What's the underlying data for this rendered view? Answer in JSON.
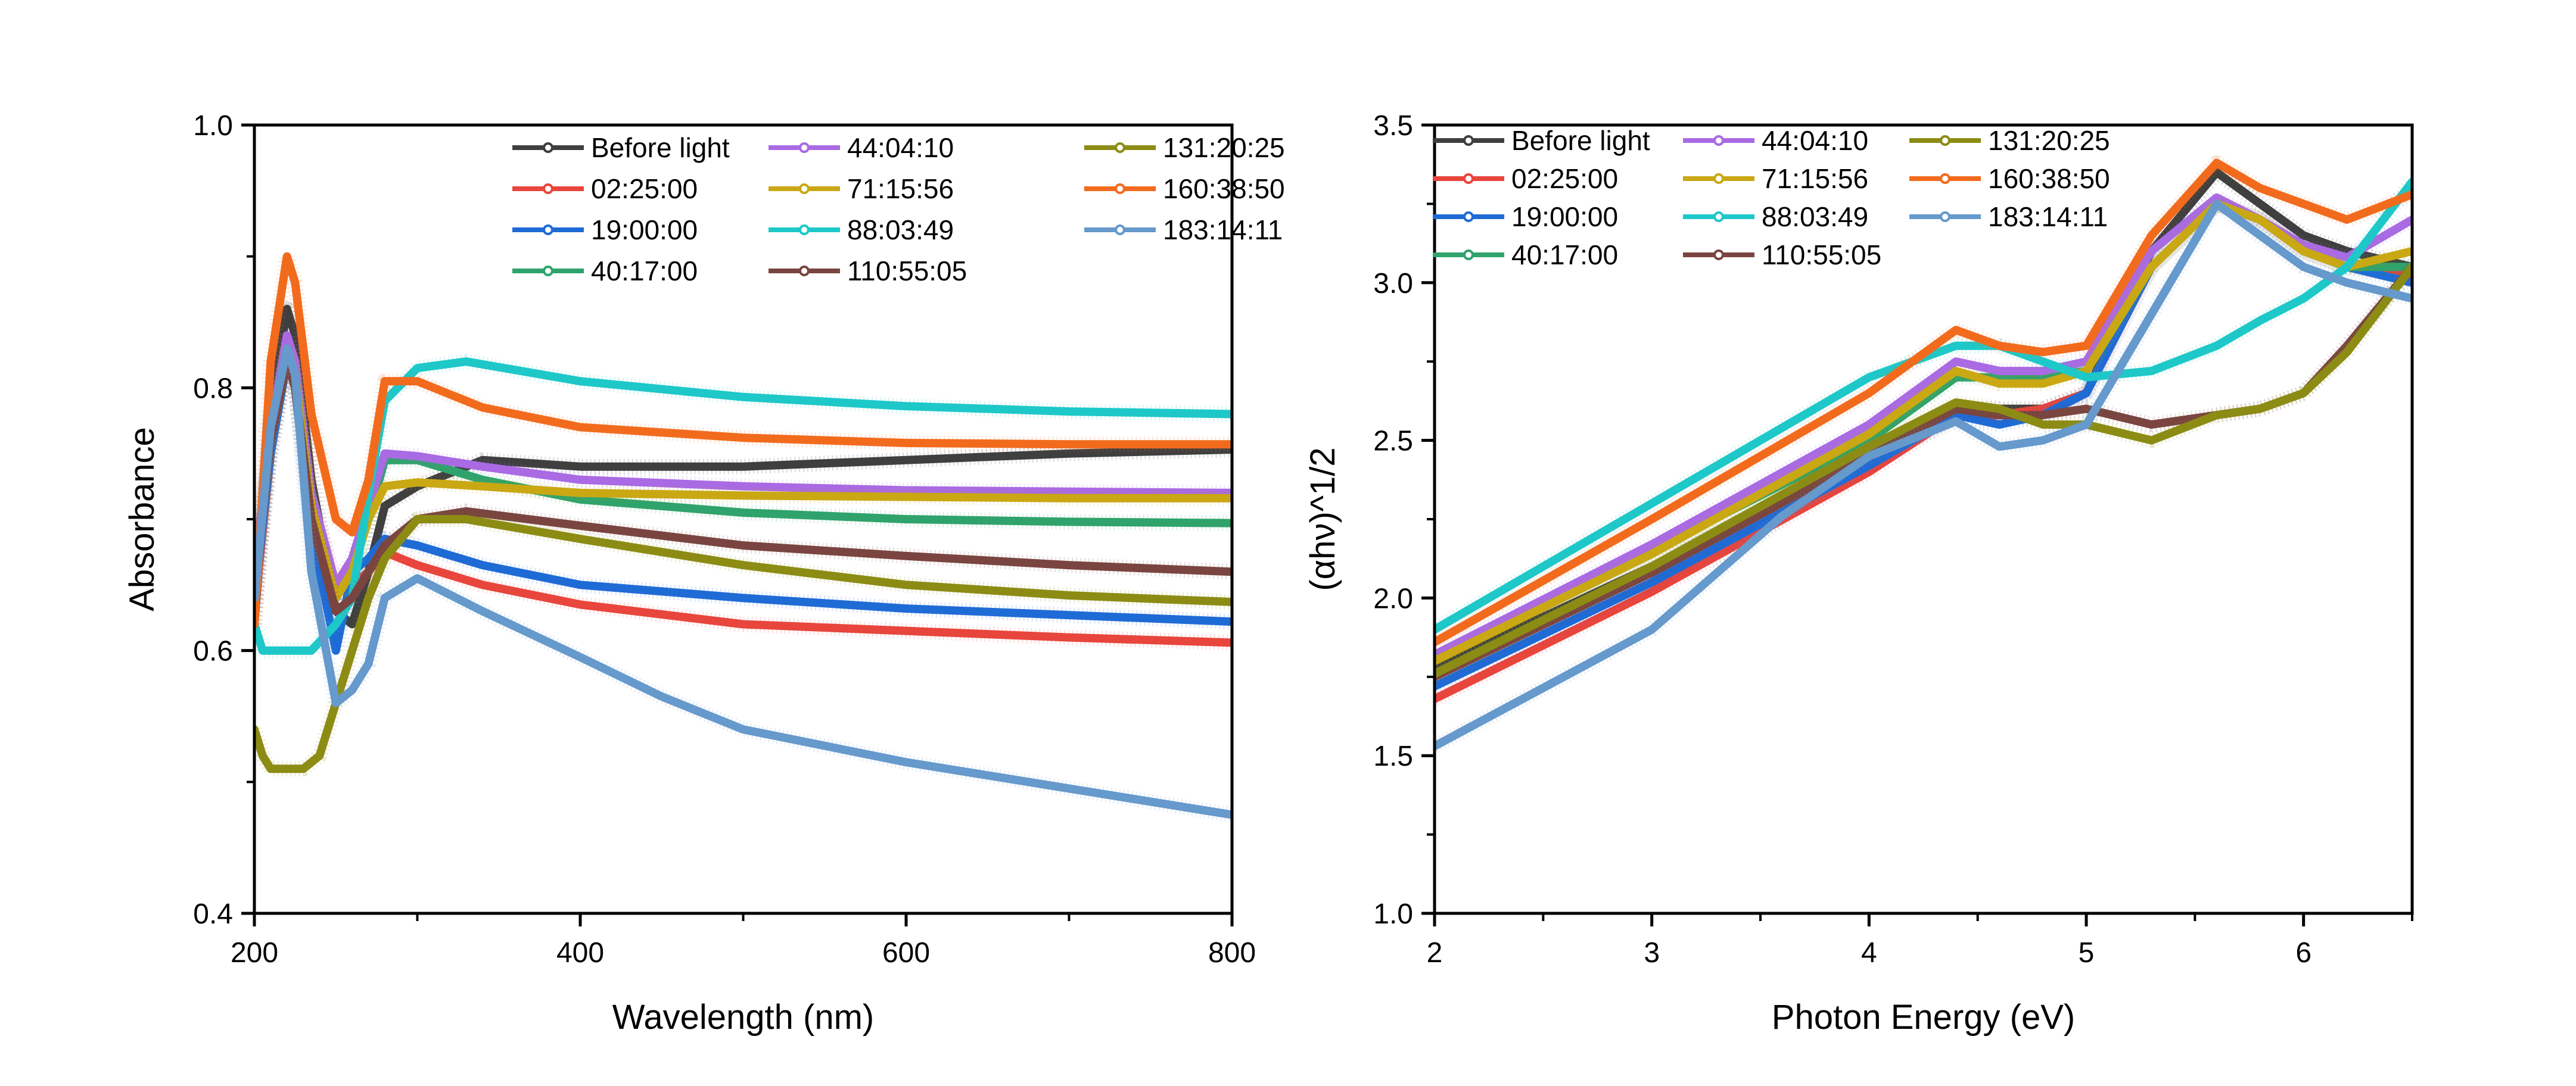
{
  "chart_data": [
    {
      "type": "line",
      "xlabel": "Wavelength (nm)",
      "ylabel": "Absorbance",
      "xlim": [
        200,
        800
      ],
      "ylim": [
        0.4,
        1.0
      ],
      "x_ticks": [
        "200",
        "400",
        "600",
        "800"
      ],
      "y_ticks": [
        "0.4",
        "0.6",
        "0.8",
        "1.0"
      ],
      "legend_position": "top-right",
      "legend_columns": 3,
      "series": [
        {
          "name": "Before light",
          "color": "#3f3f3f",
          "x": [
            200,
            210,
            220,
            225,
            235,
            250,
            260,
            270,
            280,
            300,
            340,
            400,
            500,
            600,
            700,
            800
          ],
          "y": [
            0.62,
            0.78,
            0.86,
            0.84,
            0.73,
            0.63,
            0.62,
            0.66,
            0.71,
            0.725,
            0.745,
            0.74,
            0.74,
            0.745,
            0.75,
            0.753
          ]
        },
        {
          "name": "02:25:00",
          "color": "#e8453c",
          "x": [
            200,
            210,
            220,
            225,
            235,
            250,
            260,
            270,
            280,
            300,
            340,
            400,
            500,
            600,
            700,
            800
          ],
          "y": [
            0.63,
            0.75,
            0.83,
            0.82,
            0.71,
            0.65,
            0.65,
            0.66,
            0.675,
            0.665,
            0.65,
            0.635,
            0.62,
            0.615,
            0.61,
            0.606
          ]
        },
        {
          "name": "19:00:00",
          "color": "#1f6bd6",
          "x": [
            200,
            210,
            220,
            225,
            235,
            250,
            260,
            270,
            280,
            300,
            340,
            400,
            500,
            600,
            700,
            800
          ],
          "y": [
            0.64,
            0.75,
            0.82,
            0.8,
            0.69,
            0.6,
            0.66,
            0.67,
            0.685,
            0.68,
            0.665,
            0.65,
            0.64,
            0.632,
            0.627,
            0.622
          ]
        },
        {
          "name": "40:17:00",
          "color": "#2fa36b",
          "x": [
            200,
            210,
            220,
            225,
            235,
            250,
            260,
            270,
            280,
            300,
            340,
            400,
            500,
            600,
            700,
            800
          ],
          "y": [
            0.65,
            0.76,
            0.83,
            0.81,
            0.71,
            0.64,
            0.66,
            0.7,
            0.745,
            0.745,
            0.73,
            0.715,
            0.705,
            0.7,
            0.698,
            0.697
          ]
        },
        {
          "name": "44:04:10",
          "color": "#a96ae3",
          "x": [
            200,
            210,
            220,
            225,
            235,
            250,
            260,
            270,
            280,
            300,
            340,
            400,
            500,
            600,
            700,
            800
          ],
          "y": [
            0.66,
            0.77,
            0.84,
            0.82,
            0.72,
            0.65,
            0.67,
            0.71,
            0.75,
            0.748,
            0.74,
            0.73,
            0.725,
            0.722,
            0.721,
            0.72
          ]
        },
        {
          "name": "71:15:56",
          "color": "#c9a813",
          "x": [
            200,
            210,
            220,
            225,
            235,
            250,
            260,
            270,
            280,
            300,
            340,
            400,
            500,
            600,
            700,
            800
          ],
          "y": [
            0.65,
            0.76,
            0.83,
            0.81,
            0.71,
            0.64,
            0.66,
            0.7,
            0.725,
            0.728,
            0.725,
            0.72,
            0.718,
            0.717,
            0.716,
            0.716
          ]
        },
        {
          "name": "88:03:49",
          "color": "#1ec8c8",
          "x": [
            200,
            205,
            210,
            220,
            225,
            235,
            250,
            260,
            270,
            280,
            300,
            330,
            400,
            500,
            600,
            700,
            800
          ],
          "y": [
            0.62,
            0.6,
            0.6,
            0.6,
            0.6,
            0.6,
            0.62,
            0.64,
            0.72,
            0.79,
            0.815,
            0.82,
            0.805,
            0.793,
            0.786,
            0.782,
            0.78
          ]
        },
        {
          "name": "110:55:05",
          "color": "#7a4540",
          "x": [
            200,
            210,
            220,
            225,
            235,
            250,
            260,
            270,
            280,
            300,
            330,
            400,
            500,
            600,
            700,
            800
          ],
          "y": [
            0.65,
            0.76,
            0.82,
            0.8,
            0.7,
            0.63,
            0.64,
            0.66,
            0.68,
            0.7,
            0.706,
            0.695,
            0.68,
            0.672,
            0.665,
            0.66
          ]
        },
        {
          "name": "131:20:25",
          "color": "#8c8c14",
          "x": [
            200,
            205,
            210,
            220,
            230,
            240,
            250,
            260,
            270,
            280,
            300,
            330,
            400,
            500,
            600,
            700,
            800
          ],
          "y": [
            0.54,
            0.52,
            0.51,
            0.51,
            0.51,
            0.52,
            0.56,
            0.6,
            0.64,
            0.67,
            0.7,
            0.7,
            0.685,
            0.665,
            0.65,
            0.642,
            0.637
          ]
        },
        {
          "name": "160:38:50",
          "color": "#f26b1d",
          "x": [
            200,
            210,
            220,
            225,
            235,
            250,
            260,
            270,
            280,
            300,
            340,
            400,
            500,
            600,
            700,
            800
          ],
          "y": [
            0.62,
            0.82,
            0.9,
            0.88,
            0.78,
            0.7,
            0.69,
            0.73,
            0.805,
            0.805,
            0.785,
            0.77,
            0.762,
            0.758,
            0.757,
            0.757
          ]
        },
        {
          "name": "183:14:11",
          "color": "#6699cc",
          "x": [
            200,
            210,
            220,
            225,
            235,
            250,
            260,
            270,
            280,
            300,
            340,
            400,
            450,
            500,
            600,
            700,
            800
          ],
          "y": [
            0.64,
            0.77,
            0.83,
            0.81,
            0.66,
            0.56,
            0.57,
            0.59,
            0.64,
            0.655,
            0.63,
            0.595,
            0.565,
            0.54,
            0.515,
            0.495,
            0.475
          ]
        }
      ]
    },
    {
      "type": "line",
      "xlabel": "Photon Energy (eV)",
      "ylabel": "(αhν)^1/2",
      "xlim": [
        2,
        6.5
      ],
      "ylim": [
        1.0,
        3.5
      ],
      "x_ticks": [
        "2",
        "3",
        "4",
        "5",
        "6"
      ],
      "y_ticks": [
        "1.0",
        "1.5",
        "2.0",
        "2.5",
        "3.0",
        "3.5"
      ],
      "legend_position": "top-left",
      "legend_columns": 3,
      "series": [
        {
          "name": "Before light",
          "color": "#3f3f3f",
          "x": [
            2,
            3,
            4,
            4.4,
            4.6,
            4.8,
            5.0,
            5.3,
            5.6,
            5.8,
            6.0,
            6.2,
            6.5
          ],
          "y": [
            1.78,
            2.1,
            2.45,
            2.6,
            2.6,
            2.6,
            2.65,
            3.1,
            3.35,
            3.25,
            3.15,
            3.1,
            3.05
          ]
        },
        {
          "name": "02:25:00",
          "color": "#e8453c",
          "x": [
            2,
            3,
            4,
            4.4,
            4.6,
            4.8,
            5.0,
            5.3,
            5.6,
            5.8,
            6.0,
            6.2,
            6.5
          ],
          "y": [
            1.68,
            2.02,
            2.4,
            2.58,
            2.58,
            2.6,
            2.65,
            3.05,
            3.25,
            3.2,
            3.1,
            3.05,
            3.02
          ]
        },
        {
          "name": "19:00:00",
          "color": "#1f6bd6",
          "x": [
            2,
            3,
            4,
            4.4,
            4.6,
            4.8,
            5.0,
            5.3,
            5.6,
            5.8,
            6.0,
            6.2,
            6.5
          ],
          "y": [
            1.72,
            2.05,
            2.42,
            2.58,
            2.55,
            2.58,
            2.65,
            3.05,
            3.25,
            3.2,
            3.1,
            3.05,
            3.0
          ]
        },
        {
          "name": "40:17:00",
          "color": "#2fa36b",
          "x": [
            2,
            3,
            4,
            4.4,
            4.6,
            4.8,
            5.0,
            5.3,
            5.6,
            5.8,
            6.0,
            6.2,
            6.5
          ],
          "y": [
            1.8,
            2.15,
            2.5,
            2.7,
            2.7,
            2.7,
            2.72,
            3.05,
            3.25,
            3.2,
            3.1,
            3.05,
            3.05
          ]
        },
        {
          "name": "44:04:10",
          "color": "#a96ae3",
          "x": [
            2,
            3,
            4,
            4.4,
            4.6,
            4.8,
            5.0,
            5.3,
            5.6,
            5.8,
            6.0,
            6.2,
            6.5
          ],
          "y": [
            1.82,
            2.17,
            2.55,
            2.75,
            2.72,
            2.72,
            2.75,
            3.1,
            3.27,
            3.2,
            3.12,
            3.08,
            3.2
          ]
        },
        {
          "name": "71:15:56",
          "color": "#c9a813",
          "x": [
            2,
            3,
            4,
            4.4,
            4.6,
            4.8,
            5.0,
            5.3,
            5.6,
            5.8,
            6.0,
            6.2,
            6.5
          ],
          "y": [
            1.8,
            2.14,
            2.52,
            2.72,
            2.68,
            2.68,
            2.72,
            3.05,
            3.25,
            3.2,
            3.1,
            3.05,
            3.1
          ]
        },
        {
          "name": "88:03:49",
          "color": "#1ec8c8",
          "x": [
            2,
            3,
            4,
            4.4,
            4.6,
            4.8,
            5.0,
            5.3,
            5.6,
            5.8,
            6.0,
            6.2,
            6.5
          ],
          "y": [
            1.9,
            2.3,
            2.7,
            2.8,
            2.8,
            2.75,
            2.7,
            2.72,
            2.8,
            2.88,
            2.95,
            3.05,
            3.32
          ]
        },
        {
          "name": "110:55:05",
          "color": "#7a4540",
          "x": [
            2,
            3,
            4,
            4.4,
            4.6,
            4.8,
            5.0,
            5.3,
            5.6,
            5.8,
            6.0,
            6.2,
            6.5
          ],
          "y": [
            1.75,
            2.08,
            2.45,
            2.6,
            2.58,
            2.58,
            2.6,
            2.55,
            2.58,
            2.6,
            2.65,
            2.8,
            3.05
          ]
        },
        {
          "name": "131:20:25",
          "color": "#8c8c14",
          "x": [
            2,
            3,
            4,
            4.4,
            4.6,
            4.8,
            5.0,
            5.3,
            5.6,
            5.8,
            6.0,
            6.2,
            6.5
          ],
          "y": [
            1.76,
            2.1,
            2.48,
            2.62,
            2.6,
            2.55,
            2.55,
            2.5,
            2.58,
            2.6,
            2.65,
            2.78,
            3.05
          ]
        },
        {
          "name": "160:38:50",
          "color": "#f26b1d",
          "x": [
            2,
            3,
            4,
            4.4,
            4.6,
            4.8,
            5.0,
            5.3,
            5.6,
            5.8,
            6.0,
            6.2,
            6.5
          ],
          "y": [
            1.86,
            2.25,
            2.65,
            2.85,
            2.8,
            2.78,
            2.8,
            3.15,
            3.38,
            3.3,
            3.25,
            3.2,
            3.28
          ]
        },
        {
          "name": "183:14:11",
          "color": "#6699cc",
          "x": [
            2,
            3,
            3.6,
            4,
            4.4,
            4.6,
            4.8,
            5.0,
            5.3,
            5.6,
            5.8,
            6.0,
            6.2,
            6.5
          ],
          "y": [
            1.53,
            1.9,
            2.26,
            2.45,
            2.56,
            2.48,
            2.5,
            2.55,
            2.9,
            3.25,
            3.15,
            3.05,
            3.0,
            2.95
          ]
        }
      ]
    }
  ]
}
